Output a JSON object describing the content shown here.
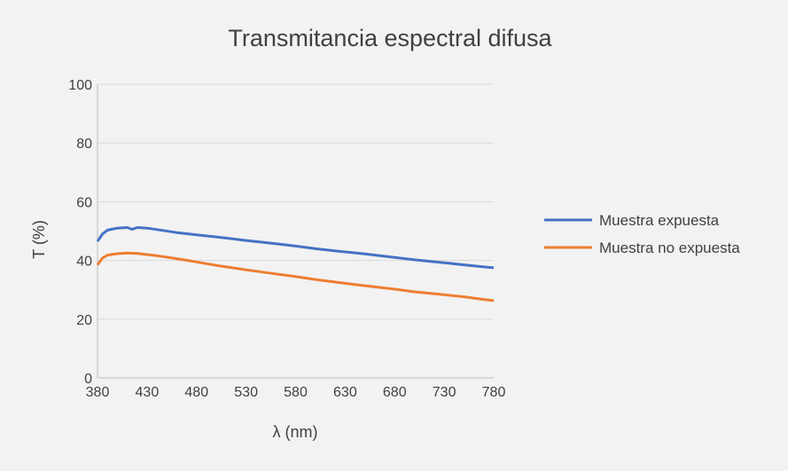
{
  "chart_data": {
    "type": "line",
    "title": "Transmitancia espectral difusa",
    "xlabel": "λ (nm)",
    "ylabel": "T (%)",
    "xlim": [
      380,
      780
    ],
    "ylim": [
      0,
      100
    ],
    "x_ticks": [
      "380",
      "430",
      "480",
      "530",
      "580",
      "630",
      "680",
      "730",
      "780"
    ],
    "y_ticks": [
      "0",
      "20",
      "40",
      "60",
      "80",
      "100"
    ],
    "grid": "horizontal",
    "legend_position": "right",
    "series": [
      {
        "name": "Muestra expuesta",
        "color": "#4472c4",
        "x": [
          380,
          385,
          390,
          400,
          410,
          415,
          420,
          430,
          440,
          460,
          480,
          500,
          530,
          560,
          580,
          600,
          630,
          650,
          680,
          700,
          730,
          750,
          770,
          780
        ],
        "y": [
          46.5,
          49,
          50.3,
          51.0,
          51.2,
          50.6,
          51.2,
          51.0,
          50.5,
          49.5,
          48.7,
          48.0,
          46.8,
          45.7,
          44.9,
          44.0,
          42.9,
          42.2,
          41.0,
          40.2,
          39.2,
          38.5,
          37.8,
          37.5
        ]
      },
      {
        "name": "Muestra no expuesta",
        "color": "#ed7d31",
        "x": [
          380,
          385,
          390,
          400,
          410,
          420,
          430,
          440,
          460,
          480,
          500,
          530,
          560,
          580,
          600,
          630,
          650,
          680,
          700,
          730,
          750,
          770,
          780
        ],
        "y": [
          38.5,
          40.8,
          41.8,
          42.3,
          42.5,
          42.4,
          42.0,
          41.6,
          40.6,
          39.5,
          38.3,
          36.8,
          35.4,
          34.5,
          33.5,
          32.2,
          31.4,
          30.2,
          29.3,
          28.3,
          27.6,
          26.7,
          26.3
        ]
      }
    ]
  }
}
